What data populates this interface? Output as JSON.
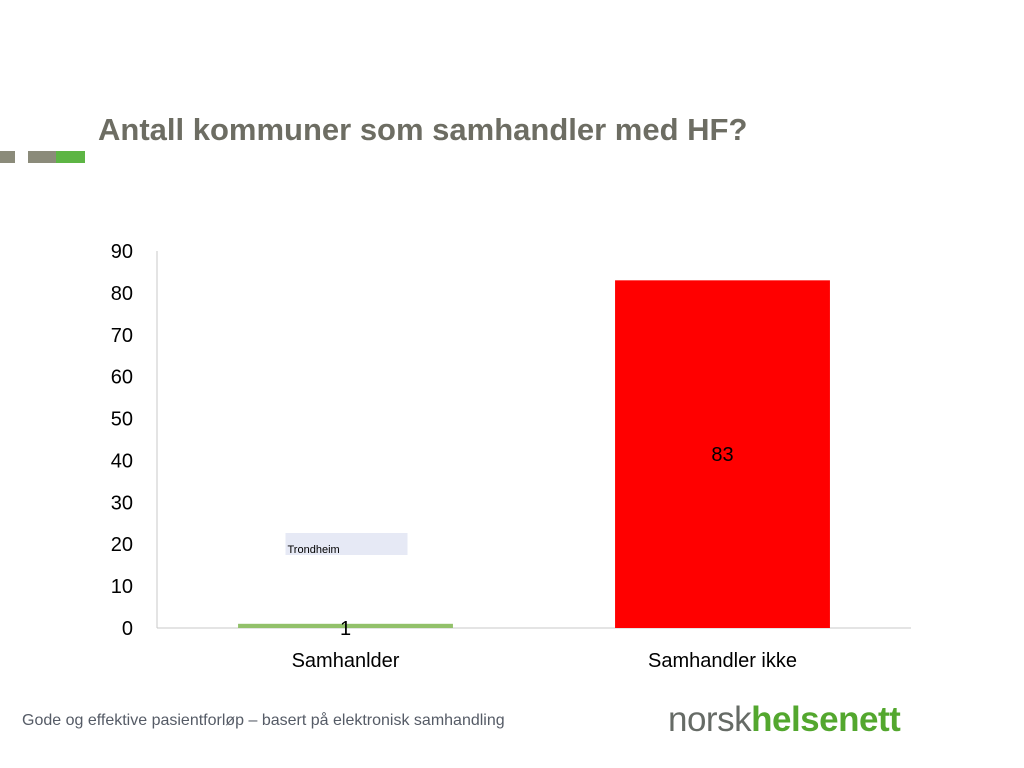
{
  "slide": {
    "title": "Antall kommuner som samhandler med HF?",
    "footer": "Gode og effektive pasientforløp – basert på elektronisk samhandling",
    "logo": {
      "part1": "norsk",
      "part2": "helsenett"
    },
    "accent_colors": {
      "gray": "#8b8b7a",
      "green": "#5db544"
    }
  },
  "chart_data": {
    "type": "bar",
    "categories": [
      "Samhanlder",
      "Samhandler ikke"
    ],
    "values": [
      1,
      83
    ],
    "colors": [
      "#92c16a",
      "#ff0000"
    ],
    "data_labels": [
      "1",
      "83"
    ],
    "ylim": [
      0,
      90
    ],
    "yticks": [
      0,
      10,
      20,
      30,
      40,
      50,
      60,
      70,
      80,
      90
    ],
    "annotation": {
      "text": "Trondheim",
      "category": "Samhanlder"
    },
    "grid": false,
    "legend": "none"
  }
}
